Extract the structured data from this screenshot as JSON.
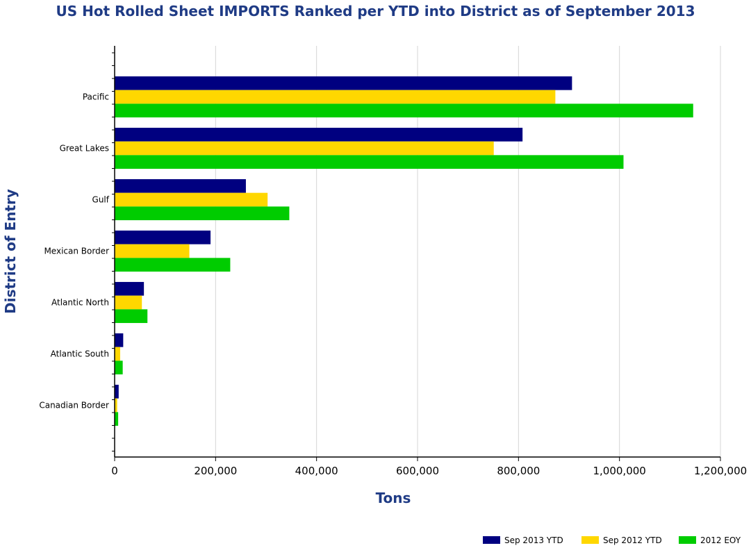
{
  "chart_data": {
    "type": "bar",
    "orientation": "horizontal",
    "title": "US Hot Rolled Sheet IMPORTS Ranked per YTD into District as of September 2013",
    "xlabel": "Tons",
    "ylabel": "District of Entry",
    "categories": [
      "Pacific",
      "Great Lakes",
      "Gulf",
      "Mexican Border",
      "Atlantic North",
      "Atlantic South",
      "Canadian Border"
    ],
    "series": [
      {
        "name": "Sep 2013 YTD",
        "color": "#000080",
        "values": [
          906000,
          808000,
          260000,
          190000,
          58000,
          17000,
          8000
        ]
      },
      {
        "name": "Sep 2012 YTD",
        "color": "#ffd700",
        "values": [
          873000,
          751000,
          303000,
          148000,
          54000,
          11000,
          5000
        ]
      },
      {
        "name": "2012 EOY",
        "color": "#00cc00",
        "values": [
          1146000,
          1008000,
          346000,
          229000,
          65000,
          16000,
          7000
        ]
      }
    ],
    "xlim": [
      0,
      1200000
    ],
    "xticks": [
      0,
      200000,
      400000,
      600000,
      800000,
      1000000,
      1200000
    ],
    "xtick_labels": [
      "0",
      "200,000",
      "400,000",
      "600,000",
      "800,000",
      "1,000,000",
      "1,200,000"
    ],
    "grid": "vertical",
    "legend_position": "bottom-right"
  }
}
